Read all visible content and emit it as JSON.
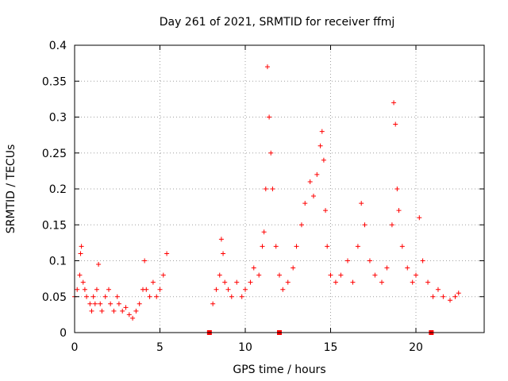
{
  "chart_data": {
    "type": "scatter",
    "title": "Day 261 of 2021, SRMTID for receiver ffmj",
    "xlabel": "GPS time / hours",
    "ylabel": "SRMTID / TECUs",
    "xlim": [
      0,
      24
    ],
    "ylim": [
      0,
      0.4
    ],
    "xticks": [
      0,
      5,
      10,
      15,
      20
    ],
    "xtick_labels": [
      "0",
      "5",
      "10",
      "15",
      "20"
    ],
    "yticks": [
      0,
      0.05,
      0.1,
      0.15,
      0.2,
      0.25,
      0.3,
      0.35,
      0.4
    ],
    "ytick_labels": [
      "0",
      "0.05",
      "0.1",
      "0.15",
      "0.2",
      "0.25",
      "0.3",
      "0.35",
      "0.4"
    ],
    "grid": true,
    "marker": "plus",
    "color": "#ff0000",
    "series": [
      {
        "name": "SRMTID",
        "x": [
          0.0,
          0.15,
          0.3,
          0.35,
          0.4,
          0.5,
          0.6,
          0.7,
          0.9,
          1.0,
          1.1,
          1.2,
          1.3,
          1.4,
          1.5,
          1.6,
          1.8,
          2.0,
          2.1,
          2.3,
          2.5,
          2.6,
          2.8,
          3.0,
          3.2,
          3.4,
          3.6,
          3.8,
          4.0,
          4.1,
          4.2,
          4.4,
          4.6,
          4.8,
          5.0,
          5.2,
          5.4,
          8.1,
          8.3,
          8.5,
          8.6,
          8.7,
          8.8,
          9.0,
          9.2,
          9.5,
          9.8,
          10.0,
          10.3,
          10.5,
          10.8,
          11.0,
          11.1,
          11.2,
          11.3,
          11.4,
          11.5,
          11.6,
          11.8,
          12.0,
          12.2,
          12.5,
          12.8,
          13.0,
          13.3,
          13.5,
          13.8,
          14.0,
          14.2,
          14.4,
          14.5,
          14.6,
          14.7,
          14.8,
          15.0,
          15.3,
          15.6,
          16.0,
          16.3,
          16.6,
          16.8,
          17.0,
          17.3,
          17.6,
          18.0,
          18.3,
          18.6,
          18.7,
          18.8,
          18.9,
          19.0,
          19.2,
          19.5,
          19.8,
          20.0,
          20.2,
          20.4,
          20.7,
          21.0,
          21.3,
          21.6,
          22.0,
          22.3,
          22.5
        ],
        "y": [
          0.05,
          0.06,
          0.08,
          0.11,
          0.12,
          0.07,
          0.06,
          0.05,
          0.04,
          0.03,
          0.05,
          0.04,
          0.06,
          0.095,
          0.04,
          0.03,
          0.05,
          0.06,
          0.04,
          0.03,
          0.05,
          0.04,
          0.03,
          0.035,
          0.025,
          0.02,
          0.03,
          0.04,
          0.06,
          0.1,
          0.06,
          0.05,
          0.07,
          0.05,
          0.06,
          0.08,
          0.11,
          0.04,
          0.06,
          0.08,
          0.13,
          0.11,
          0.07,
          0.06,
          0.05,
          0.07,
          0.05,
          0.06,
          0.07,
          0.09,
          0.08,
          0.12,
          0.14,
          0.2,
          0.37,
          0.3,
          0.25,
          0.2,
          0.12,
          0.08,
          0.06,
          0.07,
          0.09,
          0.12,
          0.15,
          0.18,
          0.21,
          0.19,
          0.22,
          0.26,
          0.28,
          0.24,
          0.17,
          0.12,
          0.08,
          0.07,
          0.08,
          0.1,
          0.07,
          0.12,
          0.18,
          0.15,
          0.1,
          0.08,
          0.07,
          0.09,
          0.15,
          0.32,
          0.29,
          0.2,
          0.17,
          0.12,
          0.09,
          0.07,
          0.08,
          0.16,
          0.1,
          0.07,
          0.05,
          0.06,
          0.05,
          0.045,
          0.05,
          0.055
        ]
      }
    ],
    "gap_markers_x": [
      7.9,
      12.0,
      20.9
    ]
  }
}
